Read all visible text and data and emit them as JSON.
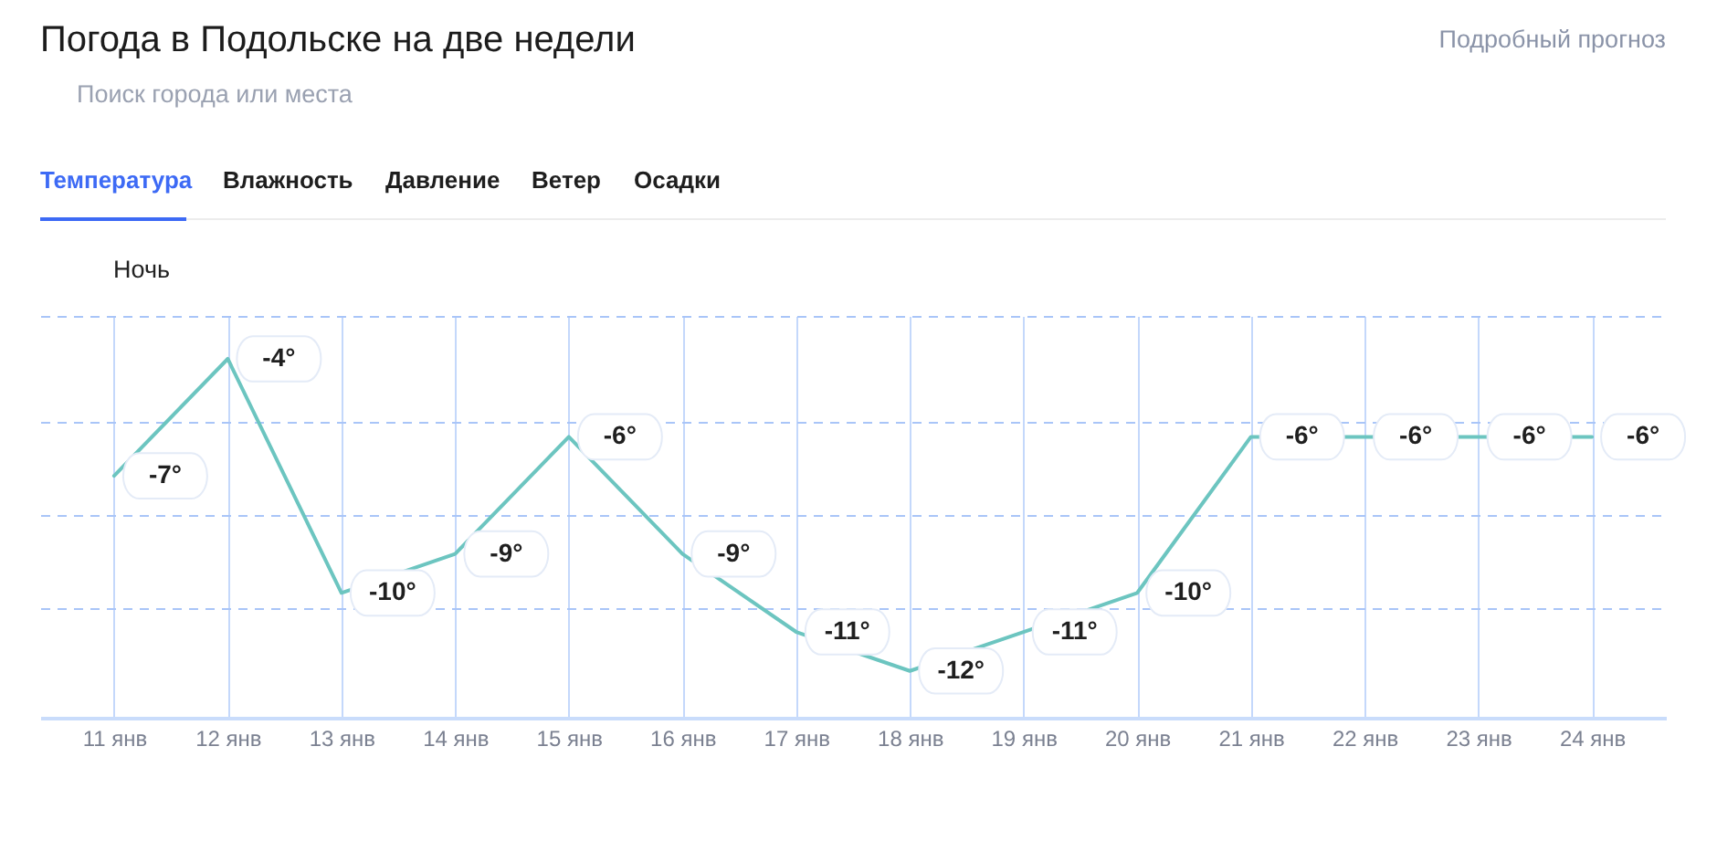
{
  "chart_data": {
    "type": "line",
    "title": "Погода в Подольске на две недели",
    "categories": [
      "11 янв",
      "12 янв",
      "13 янв",
      "14 янв",
      "15 янв",
      "16 янв",
      "17 янв",
      "18 янв",
      "19 янв",
      "20 янв",
      "21 янв",
      "22 янв",
      "23 янв",
      "24 янв"
    ],
    "series": [
      {
        "color": "#6cc5c0",
        "values": [
          -7,
          -4,
          -10,
          -9,
          -6,
          -9,
          -11,
          -12,
          -11,
          -10,
          -6,
          -6,
          -6,
          -6
        ],
        "value_labels": [
          "-7°",
          "-4°",
          "-10°",
          "-9°",
          "-6°",
          "-9°",
          "-11°",
          "-12°",
          "-11°",
          "-10°",
          "-6°",
          "-6°",
          "-6°",
          "-6°"
        ]
      }
    ],
    "ylim": [
      -13.2,
      -2.9
    ],
    "yticks": [
      {
        "value": -2.9,
        "label": null
      },
      {
        "value": -5.6,
        "label": null
      },
      {
        "value": -8.0,
        "label": null
      },
      {
        "value": -10.4,
        "label": null
      }
    ],
    "tick_labels": "x",
    "grid": true,
    "line_style": "solid",
    "annotations": [
      "Подробный прогноз",
      "Поиск города или места",
      "Температура",
      "Влажность",
      "Давление",
      "Ветер",
      "Осадки",
      "Ночь"
    ]
  }
}
